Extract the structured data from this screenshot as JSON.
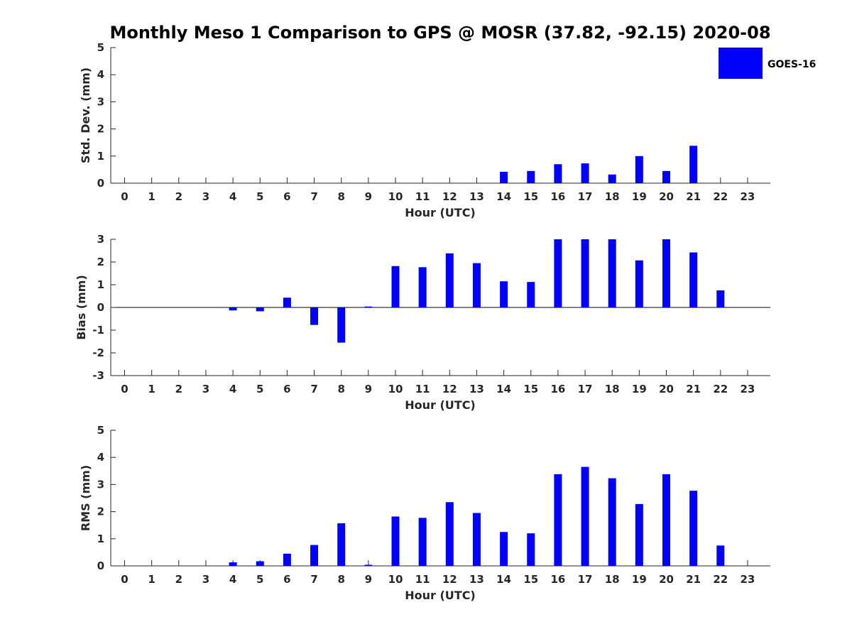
{
  "figure_title": "Monthly Meso 1 Comparison to GPS @ MOSR (37.82, -92.15) 2020-08",
  "legend": {
    "label": "GOES-16",
    "color": "#0000ff",
    "placement": "top-right"
  },
  "chart_data": [
    {
      "type": "bar",
      "ylabel": "Std. Dev. (mm)",
      "xlabel": "Hour (UTC)",
      "ylim": [
        0,
        5
      ],
      "yticks": [
        "0",
        "1",
        "2",
        "3",
        "4",
        "5"
      ],
      "categories": [
        "0",
        "1",
        "2",
        "3",
        "4",
        "5",
        "6",
        "7",
        "8",
        "9",
        "10",
        "11",
        "12",
        "13",
        "14",
        "15",
        "16",
        "17",
        "18",
        "19",
        "20",
        "21",
        "22",
        "23"
      ],
      "series": [
        {
          "name": "GOES-16",
          "color": "#0000ff",
          "values": [
            null,
            null,
            null,
            null,
            null,
            null,
            null,
            null,
            null,
            null,
            null,
            null,
            null,
            null,
            0.42,
            0.45,
            0.7,
            0.73,
            0.32,
            1.0,
            0.45,
            1.38,
            null,
            null
          ]
        }
      ]
    },
    {
      "type": "bar",
      "ylabel": "Bias (mm)",
      "xlabel": "Hour (UTC)",
      "ylim": [
        -3,
        3
      ],
      "yticks": [
        "-3",
        "-2",
        "-1",
        "0",
        "1",
        "2",
        "3"
      ],
      "zero_line": true,
      "categories": [
        "0",
        "1",
        "2",
        "3",
        "4",
        "5",
        "6",
        "7",
        "8",
        "9",
        "10",
        "11",
        "12",
        "13",
        "14",
        "15",
        "16",
        "17",
        "18",
        "19",
        "20",
        "21",
        "22",
        "23"
      ],
      "series": [
        {
          "name": "GOES-16",
          "color": "#0000ff",
          "values": [
            null,
            null,
            null,
            null,
            -0.13,
            -0.17,
            0.43,
            -0.77,
            -1.55,
            0.04,
            1.82,
            1.77,
            2.38,
            1.95,
            1.15,
            1.12,
            3.0,
            3.0,
            3.0,
            2.07,
            3.0,
            2.42,
            0.75,
            null
          ]
        }
      ]
    },
    {
      "type": "bar",
      "ylabel": "RMS (mm)",
      "xlabel": "Hour (UTC)",
      "ylim": [
        0,
        5
      ],
      "yticks": [
        "0",
        "1",
        "2",
        "3",
        "4",
        "5"
      ],
      "categories": [
        "0",
        "1",
        "2",
        "3",
        "4",
        "5",
        "6",
        "7",
        "8",
        "9",
        "10",
        "11",
        "12",
        "13",
        "14",
        "15",
        "16",
        "17",
        "18",
        "19",
        "20",
        "21",
        "22",
        "23"
      ],
      "series": [
        {
          "name": "GOES-16",
          "color": "#0000ff",
          "values": [
            null,
            null,
            null,
            null,
            0.13,
            0.17,
            0.45,
            0.77,
            1.57,
            0.04,
            1.82,
            1.77,
            2.35,
            1.95,
            1.25,
            1.2,
            3.38,
            3.65,
            3.23,
            2.28,
            3.38,
            2.77,
            0.75,
            null
          ]
        }
      ]
    }
  ]
}
